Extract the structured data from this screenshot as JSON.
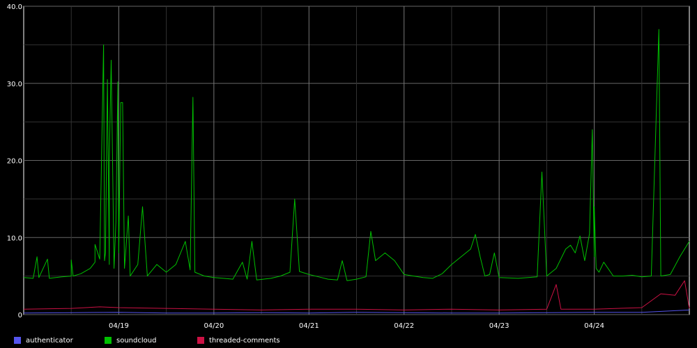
{
  "chart_data": {
    "type": "line",
    "title": "",
    "xlabel": "",
    "ylabel": "",
    "ylim": [
      0,
      40
    ],
    "y_ticks": [
      {
        "value": 0,
        "label": "0"
      },
      {
        "value": 10,
        "label": "10.0"
      },
      {
        "value": 20,
        "label": "20.0"
      },
      {
        "value": 30,
        "label": "30.0"
      },
      {
        "value": 40,
        "label": "40.0"
      }
    ],
    "xlim_days": [
      0,
      7
    ],
    "x_ticks": [
      {
        "day": 1,
        "label": "04/19"
      },
      {
        "day": 2,
        "label": "04/20"
      },
      {
        "day": 3,
        "label": "04/21"
      },
      {
        "day": 4,
        "label": "04/22"
      },
      {
        "day": 5,
        "label": "04/23"
      },
      {
        "day": 6,
        "label": "04/24"
      }
    ],
    "grid": true,
    "legend_position": "bottom",
    "series": [
      {
        "name": "authenticator",
        "color": "#5555ee",
        "points": [
          [
            0,
            0.2
          ],
          [
            0.5,
            0.25
          ],
          [
            1,
            0.3
          ],
          [
            1.5,
            0.2
          ],
          [
            2,
            0.2
          ],
          [
            2.5,
            0.25
          ],
          [
            3,
            0.2
          ],
          [
            3.5,
            0.3
          ],
          [
            4,
            0.25
          ],
          [
            4.5,
            0.2
          ],
          [
            5,
            0.2
          ],
          [
            5.5,
            0.25
          ],
          [
            6,
            0.3
          ],
          [
            6.5,
            0.3
          ],
          [
            7,
            0.6
          ]
        ]
      },
      {
        "name": "soundcloud",
        "color": "#00c000",
        "points": [
          [
            0.0,
            4.8
          ],
          [
            0.1,
            4.7
          ],
          [
            0.14,
            7.5
          ],
          [
            0.16,
            4.8
          ],
          [
            0.25,
            7.2
          ],
          [
            0.27,
            4.7
          ],
          [
            0.4,
            4.9
          ],
          [
            0.5,
            5.0
          ],
          [
            0.5,
            7.1
          ],
          [
            0.52,
            5.0
          ],
          [
            0.6,
            5.3
          ],
          [
            0.7,
            6.0
          ],
          [
            0.75,
            6.8
          ],
          [
            0.8,
            7.2
          ],
          [
            0.75,
            9.1
          ],
          [
            0.85,
            7.0
          ],
          [
            0.9,
            6.5
          ],
          [
            0.84,
            35.0
          ],
          [
            0.86,
            8.0
          ],
          [
            0.88,
            30.5
          ],
          [
            0.9,
            20.0
          ],
          [
            0.92,
            33.0
          ],
          [
            0.95,
            6.0
          ],
          [
            0.97,
            12.0
          ],
          [
            0.99,
            30.2
          ],
          [
            1.0,
            8.0
          ],
          [
            1.02,
            27.5
          ],
          [
            1.04,
            27.5
          ],
          [
            1.06,
            6.0
          ],
          [
            1.1,
            12.8
          ],
          [
            1.12,
            5.0
          ],
          [
            1.2,
            6.5
          ],
          [
            1.25,
            14.0
          ],
          [
            1.3,
            5.0
          ],
          [
            1.4,
            6.5
          ],
          [
            1.5,
            5.5
          ],
          [
            1.6,
            6.5
          ],
          [
            1.7,
            9.5
          ],
          [
            1.75,
            5.8
          ],
          [
            1.78,
            28.2
          ],
          [
            1.8,
            5.5
          ],
          [
            1.9,
            5.0
          ],
          [
            2.0,
            4.8
          ],
          [
            2.1,
            4.7
          ],
          [
            2.2,
            4.6
          ],
          [
            2.3,
            6.8
          ],
          [
            2.35,
            4.6
          ],
          [
            2.4,
            9.5
          ],
          [
            2.45,
            4.5
          ],
          [
            2.6,
            4.7
          ],
          [
            2.7,
            5.0
          ],
          [
            2.8,
            5.5
          ],
          [
            2.85,
            15.0
          ],
          [
            2.9,
            5.6
          ],
          [
            3.0,
            5.2
          ],
          [
            3.1,
            4.9
          ],
          [
            3.2,
            4.6
          ],
          [
            3.3,
            4.5
          ],
          [
            3.35,
            7.0
          ],
          [
            3.4,
            4.4
          ],
          [
            3.5,
            4.6
          ],
          [
            3.6,
            4.9
          ],
          [
            3.65,
            10.8
          ],
          [
            3.7,
            7.0
          ],
          [
            3.8,
            8.0
          ],
          [
            3.9,
            7.0
          ],
          [
            4.0,
            5.2
          ],
          [
            4.1,
            5.0
          ],
          [
            4.2,
            4.8
          ],
          [
            4.3,
            4.7
          ],
          [
            4.4,
            5.3
          ],
          [
            4.5,
            6.5
          ],
          [
            4.6,
            7.5
          ],
          [
            4.7,
            8.5
          ],
          [
            4.75,
            10.4
          ],
          [
            4.8,
            7.5
          ],
          [
            4.85,
            5.0
          ],
          [
            4.9,
            5.2
          ],
          [
            4.95,
            8.0
          ],
          [
            5.0,
            4.8
          ],
          [
            5.2,
            4.7
          ],
          [
            5.4,
            4.9
          ],
          [
            5.45,
            18.5
          ],
          [
            5.5,
            5.0
          ],
          [
            5.6,
            6.0
          ],
          [
            5.7,
            8.5
          ],
          [
            5.75,
            9.0
          ],
          [
            5.8,
            8.0
          ],
          [
            5.85,
            10.2
          ],
          [
            5.9,
            7.0
          ],
          [
            5.95,
            10.5
          ],
          [
            6.0,
            7.5
          ],
          [
            5.98,
            24.0
          ],
          [
            6.02,
            6.0
          ],
          [
            6.0,
            14.0
          ],
          [
            6.05,
            5.5
          ],
          [
            6.1,
            6.8
          ],
          [
            6.2,
            5.0
          ],
          [
            6.3,
            5.0
          ],
          [
            6.4,
            5.1
          ],
          [
            6.5,
            4.9
          ],
          [
            6.6,
            5.0
          ],
          [
            6.68,
            37.0
          ],
          [
            6.7,
            5.0
          ],
          [
            6.8,
            5.2
          ],
          [
            6.9,
            7.5
          ],
          [
            7.0,
            9.5
          ]
        ]
      },
      {
        "name": "threaded-comments",
        "color": "#cc1144",
        "points": [
          [
            0,
            0.7
          ],
          [
            0.5,
            0.8
          ],
          [
            0.8,
            1.0
          ],
          [
            1,
            0.9
          ],
          [
            1.5,
            0.8
          ],
          [
            2,
            0.7
          ],
          [
            2.5,
            0.6
          ],
          [
            3,
            0.7
          ],
          [
            3.5,
            0.7
          ],
          [
            4,
            0.6
          ],
          [
            4.5,
            0.7
          ],
          [
            5,
            0.6
          ],
          [
            5.5,
            0.7
          ],
          [
            5.6,
            3.9
          ],
          [
            5.65,
            0.7
          ],
          [
            6,
            0.7
          ],
          [
            6.5,
            0.9
          ],
          [
            6.7,
            2.7
          ],
          [
            6.85,
            2.5
          ],
          [
            6.95,
            4.4
          ],
          [
            7,
            0.8
          ]
        ]
      }
    ]
  }
}
